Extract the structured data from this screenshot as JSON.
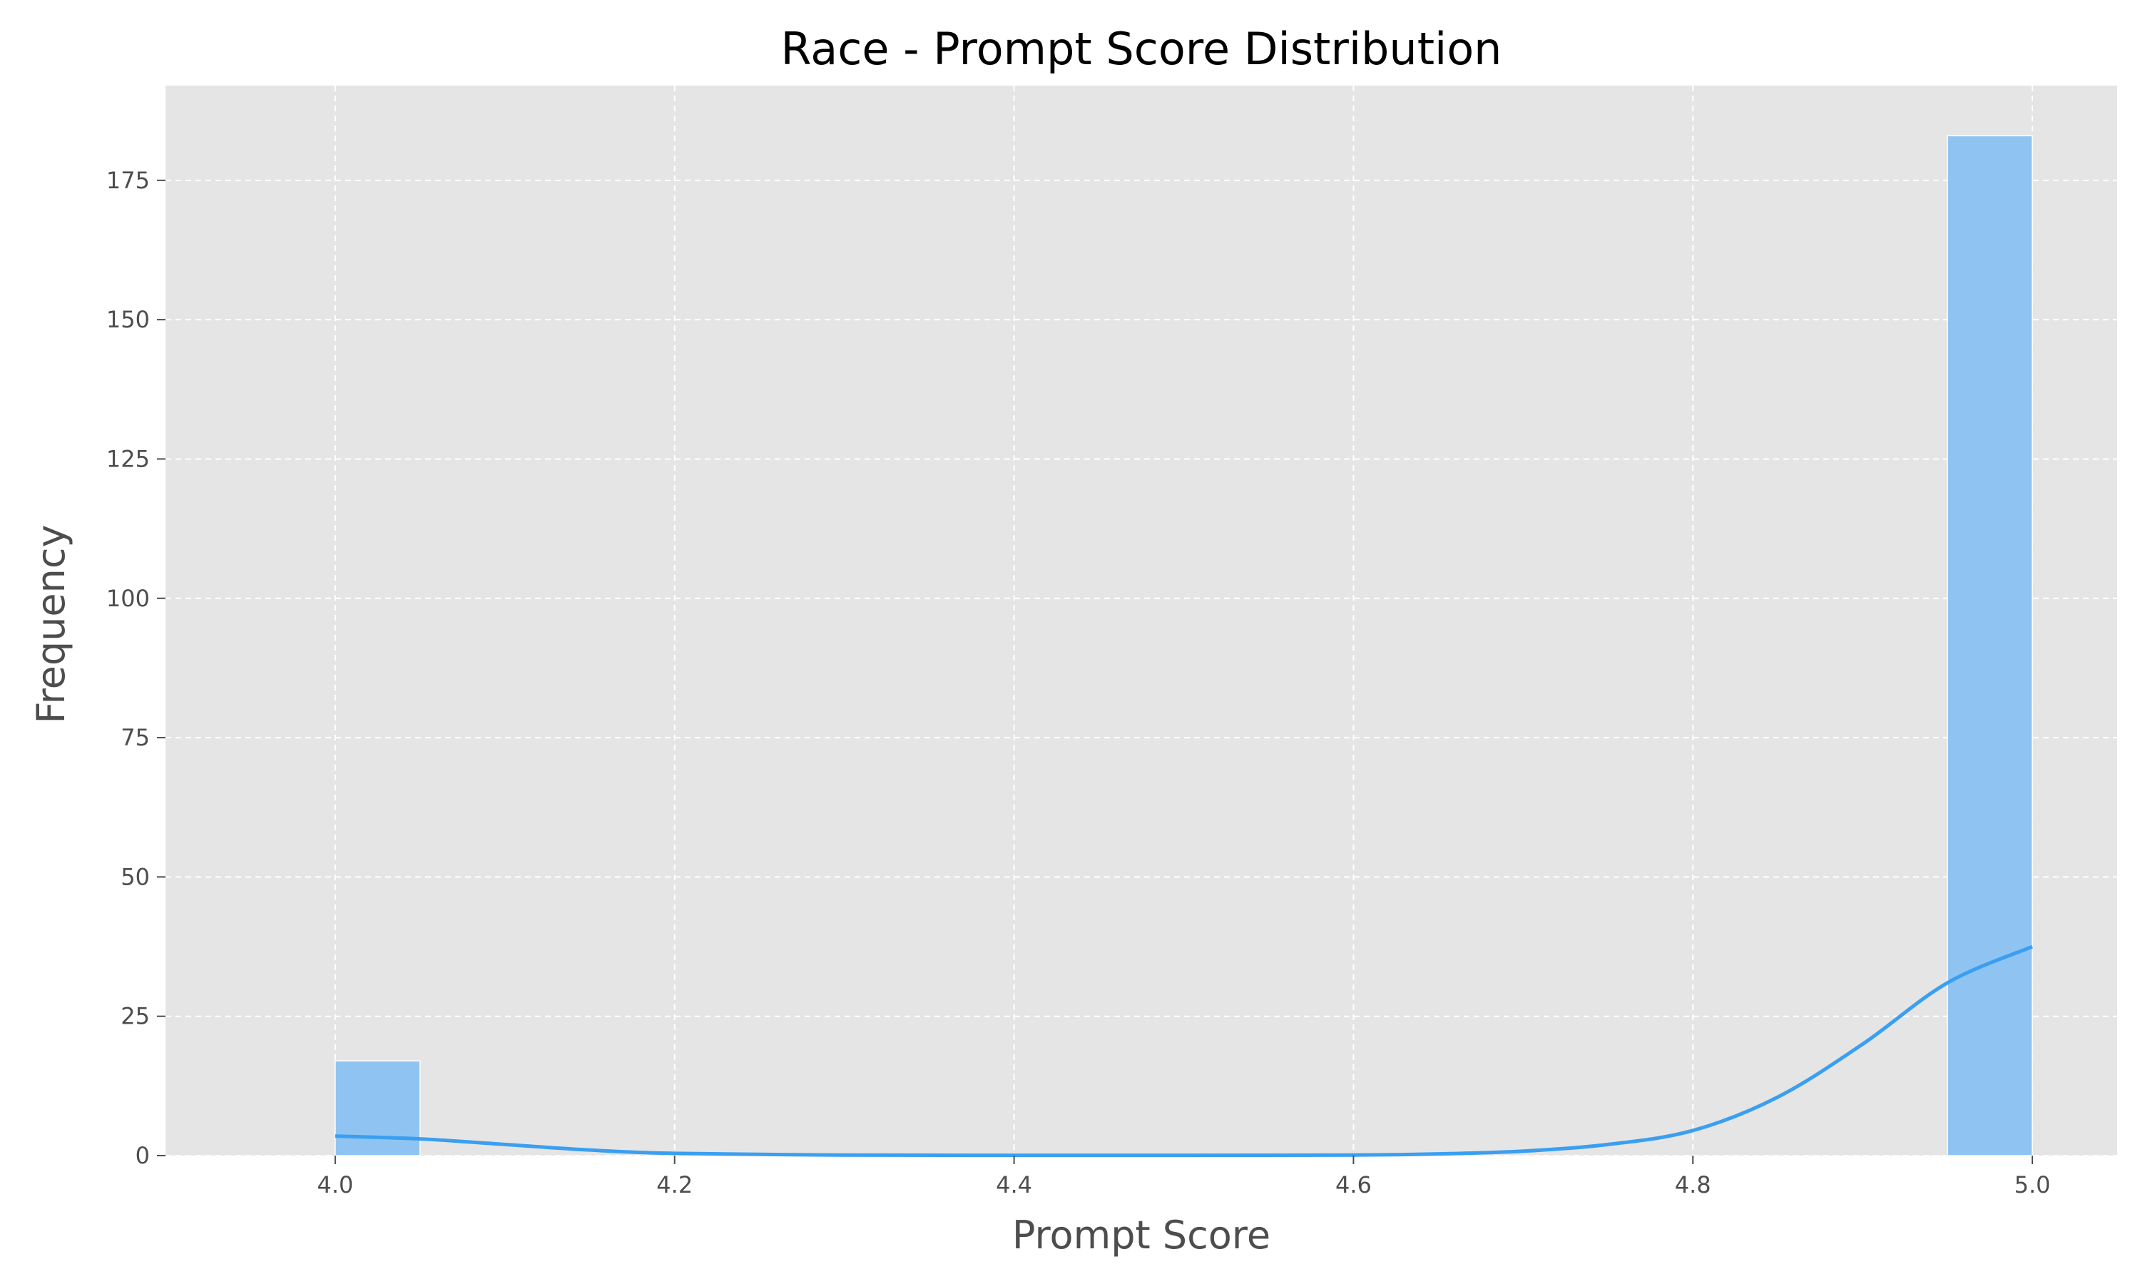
{
  "chart_data": {
    "type": "histogram",
    "title": "Race - Prompt Score Distribution",
    "xlabel": "Prompt Score",
    "ylabel": "Frequency",
    "xlim": [
      3.9,
      5.05
    ],
    "ylim": [
      0,
      192
    ],
    "xticks": [
      4.0,
      4.2,
      4.4,
      4.6,
      4.8,
      5.0
    ],
    "xtick_labels": [
      "4.0",
      "4.2",
      "4.4",
      "4.6",
      "4.8",
      "5.0"
    ],
    "yticks": [
      0,
      25,
      50,
      75,
      100,
      125,
      150,
      175
    ],
    "ytick_labels": [
      "0",
      "25",
      "50",
      "75",
      "100",
      "125",
      "150",
      "175"
    ],
    "bins": [
      {
        "x0": 4.0,
        "x1": 4.05,
        "count": 17
      },
      {
        "x0": 4.95,
        "x1": 5.0,
        "count": 183
      }
    ],
    "kde": {
      "x": [
        4.0,
        4.05,
        4.1,
        4.15,
        4.2,
        4.3,
        4.4,
        4.5,
        4.6,
        4.65,
        4.7,
        4.75,
        4.8,
        4.85,
        4.9,
        4.95,
        5.0
      ],
      "y": [
        3.5,
        3.0,
        2.0,
        1.0,
        0.4,
        0.1,
        0.05,
        0.05,
        0.1,
        0.3,
        0.8,
        2.0,
        4.5,
        10.5,
        20.0,
        31.0,
        37.5
      ]
    },
    "grid": true,
    "colors": {
      "bar": "#8fc4f2",
      "kde": "#3a9ff0",
      "background": "#e5e5e5",
      "grid": "#ffffff"
    }
  }
}
